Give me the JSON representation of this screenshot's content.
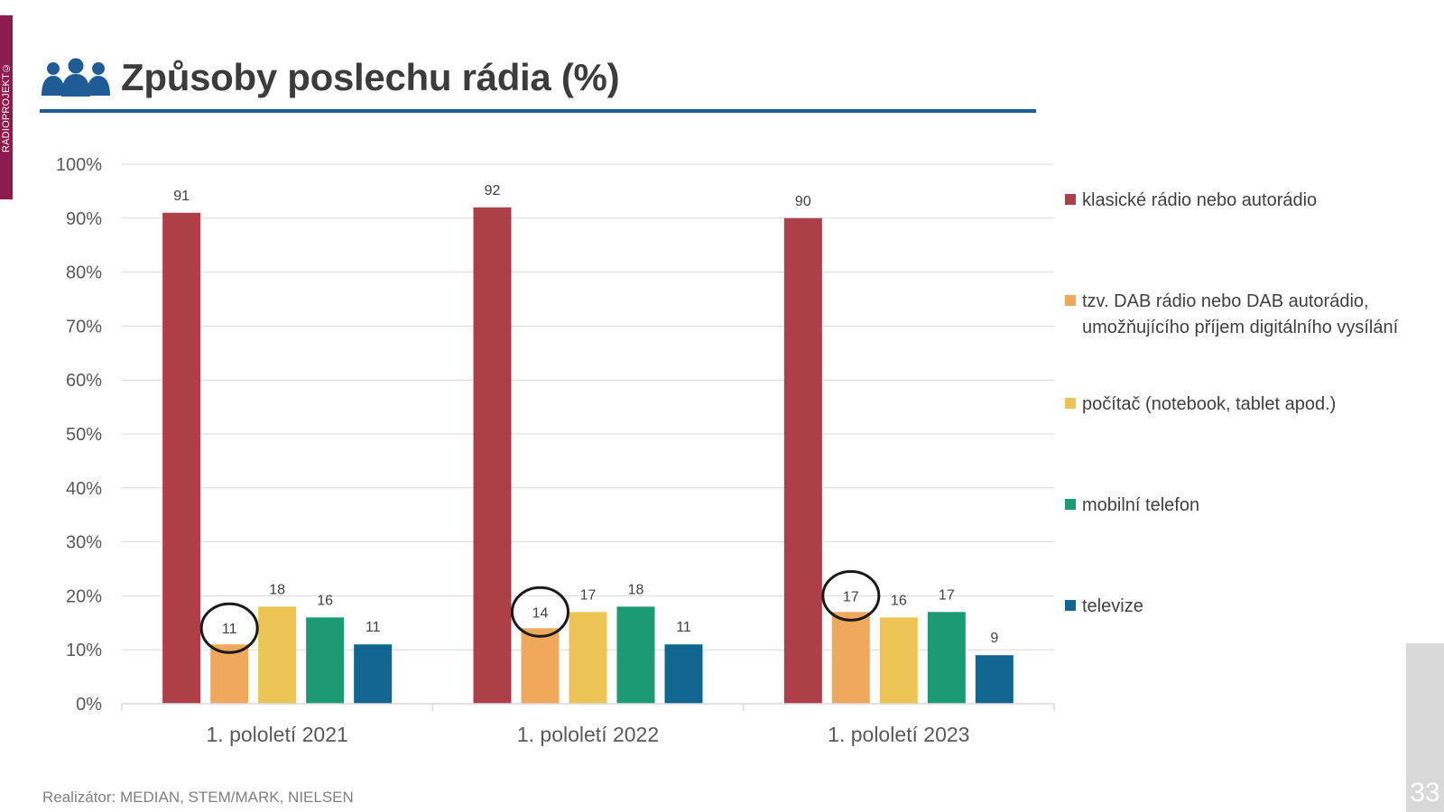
{
  "brand": {
    "side_text": "RADIOPROJEKT©"
  },
  "page": {
    "title": "Způsoby poslechu rádia (%)",
    "source": "Realizátor: MEDIAN, STEM/MARK, NIELSEN",
    "page_number": "33"
  },
  "colors": {
    "brand": "#8c1c4f",
    "title_rule": "#1f5c96",
    "highlight_circle": "#1a1a1a"
  },
  "chart_data": {
    "type": "bar",
    "title": "Způsoby poslechu rádia (%)",
    "categories": [
      "1. pololetí 2021",
      "1. pololetí 2022",
      "1. pololetí 2023"
    ],
    "ylim": [
      0,
      100
    ],
    "yticks": [
      0,
      10,
      20,
      30,
      40,
      50,
      60,
      70,
      80,
      90,
      100
    ],
    "ytick_labels": [
      "0%",
      "10%",
      "20%",
      "30%",
      "40%",
      "50%",
      "60%",
      "70%",
      "80%",
      "90%",
      "100%"
    ],
    "grid": true,
    "legend_position": "right",
    "series": [
      {
        "name": "klasické rádio nebo autorádio",
        "color": "#ad3f48",
        "values": [
          91,
          92,
          90
        ],
        "labels": [
          "91",
          "92",
          "90"
        ]
      },
      {
        "name": "tzv. DAB rádio nebo DAB autorádio, umožňujícího příjem digitálního vysílání",
        "color": "#f0a95c",
        "values": [
          11,
          14,
          17
        ],
        "labels": [
          "11",
          "14",
          "17"
        ],
        "highlighted": true
      },
      {
        "name": "počítač (notebook, tablet apod.)",
        "color": "#ecc456",
        "values": [
          18,
          17,
          16
        ],
        "labels": [
          "18",
          "17",
          "16"
        ]
      },
      {
        "name": "mobilní telefon",
        "color": "#1c9a72",
        "values": [
          16,
          18,
          17
        ],
        "labels": [
          "16",
          "18",
          "17"
        ]
      },
      {
        "name": "televize",
        "color": "#10668e",
        "values": [
          11,
          11,
          9
        ],
        "labels": [
          "11",
          "11",
          "9"
        ]
      }
    ]
  }
}
